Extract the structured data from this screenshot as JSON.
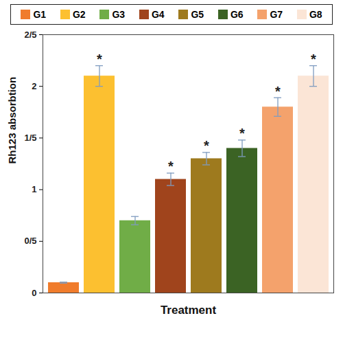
{
  "chart_data": {
    "type": "bar",
    "categories": [
      "G1",
      "G2",
      "G3",
      "G4",
      "G5",
      "G6",
      "G7",
      "G8"
    ],
    "values": [
      0.1,
      2.1,
      0.7,
      1.1,
      1.3,
      1.4,
      1.8,
      2.1
    ],
    "errors": [
      0.005,
      0.1,
      0.04,
      0.06,
      0.06,
      0.08,
      0.09,
      0.1
    ],
    "colors": [
      "#f07c2c",
      "#fcc030",
      "#70ad47",
      "#a0441c",
      "#9e7a1e",
      "#3b6324",
      "#f4a26c",
      "#fbe5d6"
    ],
    "ylabel": "Rh123 absorbtion",
    "xlabel": "Treatment",
    "ylim": [
      0,
      2.5
    ],
    "yticks": [
      0,
      {
        "value": 0.5,
        "label": "0/5"
      },
      1,
      {
        "value": 1.5,
        "label": "1/5"
      },
      2,
      {
        "value": 2.5,
        "label": "2/5"
      }
    ],
    "annotations": [
      {
        "category": "G2",
        "text": "*"
      },
      {
        "category": "G4",
        "text": "*"
      },
      {
        "category": "G5",
        "text": "*"
      },
      {
        "category": "G6",
        "text": "*"
      },
      {
        "category": "G7",
        "text": "*"
      },
      {
        "category": "G8",
        "text": "*"
      }
    ],
    "legend": "top",
    "tick_labels": "y"
  }
}
